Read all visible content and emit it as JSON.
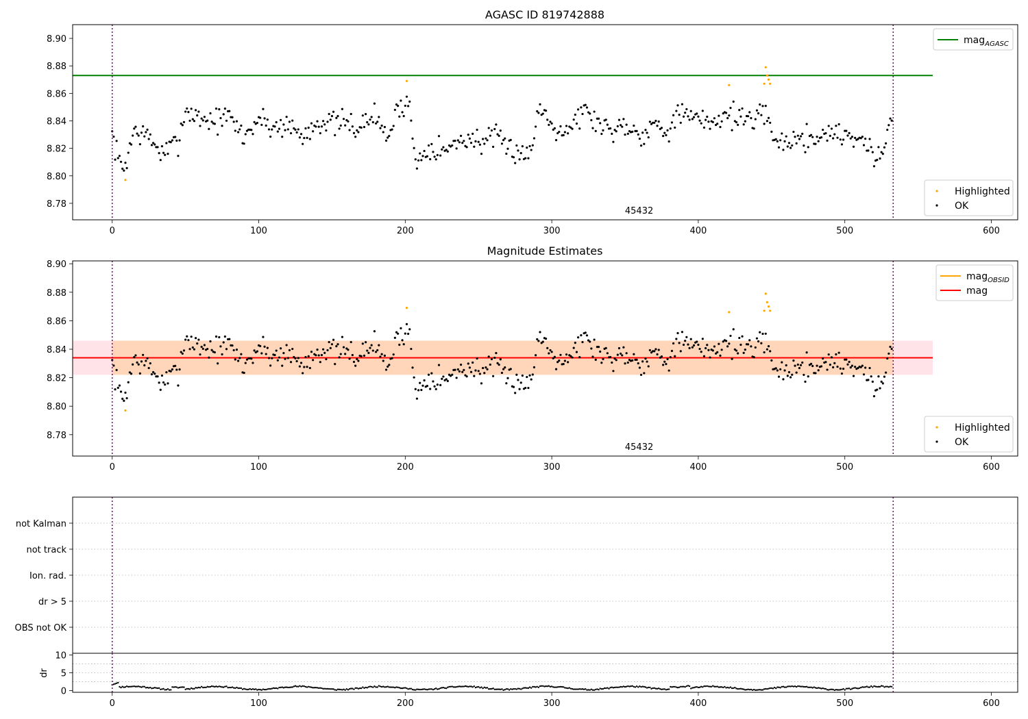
{
  "colors": {
    "ok": "#000000",
    "highlighted": "#ffa500",
    "mag_agasc": "#008000",
    "mag_obsid": "#ffa500",
    "mag": "#ff0000",
    "band_mag": "#ffc0cb",
    "band_obsid": "#ffa500",
    "marker_line": "#800080"
  },
  "chart_data": [
    {
      "type": "scatter",
      "title": "AGASC ID 819742888",
      "xlim": [
        -27,
        618
      ],
      "ylim": [
        8.768,
        8.91
      ],
      "xticks": [
        0,
        100,
        200,
        300,
        400,
        500,
        600
      ],
      "yticks": [
        8.78,
        8.8,
        8.82,
        8.84,
        8.86,
        8.88,
        8.9
      ],
      "ytick_labels": [
        "8.78",
        "8.80",
        "8.82",
        "8.84",
        "8.86",
        "8.88",
        "8.90"
      ],
      "obsid_label": {
        "text": "45432",
        "x": 267
      },
      "vlines": [
        0,
        533
      ],
      "hlines": [
        {
          "name": "mag_AGASC",
          "value": 8.873,
          "x": [
            -27,
            560
          ]
        }
      ],
      "legends": [
        {
          "position": "upper-right",
          "entries": [
            {
              "label": "mag",
              "sub": "AGASC",
              "kind": "line",
              "color_key": "mag_agasc"
            }
          ]
        },
        {
          "position": "lower-right",
          "entries": [
            {
              "label": "Highlighted",
              "kind": "dot",
              "color_key": "highlighted"
            },
            {
              "label": "OK",
              "kind": "dot",
              "color_key": "ok"
            }
          ]
        }
      ],
      "series": [
        {
          "name": "Highlighted",
          "points": [
            [
              9,
              8.797
            ],
            [
              201,
              8.869
            ],
            [
              421,
              8.866
            ],
            [
              445,
              8.867
            ],
            [
              446,
              8.879
            ],
            [
              447,
              8.873
            ],
            [
              448,
              8.87
            ],
            [
              449,
              8.867
            ]
          ]
        },
        {
          "name": "OK",
          "generated": true,
          "n": 533,
          "seed": 7
        }
      ]
    },
    {
      "type": "scatter",
      "title": "Magnitude Estimates",
      "xlim": [
        -27,
        618
      ],
      "ylim": [
        8.765,
        8.902
      ],
      "xticks": [
        0,
        100,
        200,
        300,
        400,
        500,
        600
      ],
      "yticks": [
        8.78,
        8.8,
        8.82,
        8.84,
        8.86,
        8.88,
        8.9
      ],
      "ytick_labels": [
        "8.78",
        "8.80",
        "8.82",
        "8.84",
        "8.86",
        "8.88",
        "8.90"
      ],
      "obsid_label": {
        "text": "45432",
        "x": 267
      },
      "vlines": [
        0,
        533
      ],
      "bands": [
        {
          "name": "mag range",
          "y": [
            8.822,
            8.846
          ],
          "x": [
            -27,
            560
          ],
          "color_key": "band_mag",
          "opacity": 0.45
        },
        {
          "name": "mag_OBSID range",
          "y": [
            8.822,
            8.846
          ],
          "x": [
            0,
            533
          ],
          "color_key": "band_obsid",
          "opacity": 0.2
        }
      ],
      "hlines": [
        {
          "name": "mag_OBSID",
          "value": 8.834,
          "x": [
            0,
            533
          ]
        },
        {
          "name": "mag",
          "value": 8.834,
          "x": [
            -27,
            560
          ]
        }
      ],
      "legends": [
        {
          "position": "upper-right",
          "entries": [
            {
              "label": "mag",
              "sub": "OBSID",
              "kind": "line",
              "color_key": "mag_obsid"
            },
            {
              "label": "mag",
              "kind": "line",
              "color_key": "mag"
            }
          ]
        },
        {
          "position": "lower-right",
          "entries": [
            {
              "label": "Highlighted",
              "kind": "dot",
              "color_key": "highlighted"
            },
            {
              "label": "OK",
              "kind": "dot",
              "color_key": "ok"
            }
          ]
        }
      ],
      "series": [
        {
          "name": "Highlighted",
          "points": [
            [
              9,
              8.797
            ],
            [
              201,
              8.869
            ],
            [
              421,
              8.866
            ],
            [
              445,
              8.867
            ],
            [
              446,
              8.879
            ],
            [
              447,
              8.873
            ],
            [
              448,
              8.87
            ],
            [
              449,
              8.867
            ]
          ]
        },
        {
          "name": "OK",
          "generated": true,
          "n": 533,
          "seed": 7
        }
      ]
    },
    {
      "type": "scatter",
      "title": "",
      "flags": [
        "not Kalman",
        "not track",
        "Ion. rad.",
        "dr > 5",
        "OBS not OK"
      ],
      "xlim": [
        -27,
        618
      ],
      "vlines": [
        0,
        533
      ],
      "series": []
    },
    {
      "type": "line",
      "ylabel": "dr",
      "xlim": [
        -27,
        618
      ],
      "ylim": [
        -0.5,
        10.5
      ],
      "xticks": [
        0,
        100,
        200,
        300,
        400,
        500,
        600
      ],
      "yticks": [
        0,
        5,
        10
      ],
      "ytick_labels": [
        "0",
        "5",
        "10"
      ],
      "vlines": [
        0,
        533
      ],
      "series": [
        {
          "name": "dr",
          "generated": true,
          "n": 533,
          "seed": 11
        }
      ]
    }
  ]
}
